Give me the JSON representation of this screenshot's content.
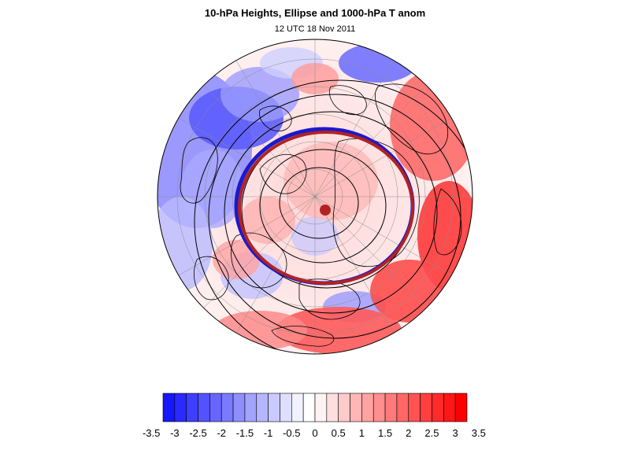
{
  "title": "10-hPa Heights, Ellipse and 1000-hPa T anom",
  "subtitle": "12 UTC 18 Nov 2011",
  "colorbar": {
    "labels": [
      "-3.5",
      "-3",
      "-2.5",
      "-2",
      "-1.5",
      "-1",
      "-0.5",
      "0",
      "0.5",
      "1",
      "1.5",
      "2",
      "2.5",
      "3",
      "3.5"
    ],
    "colors": [
      "#1616ff",
      "#2a2aff",
      "#3e3eff",
      "#5252ff",
      "#6666ff",
      "#7a7aff",
      "#8e8eff",
      "#a2a2ff",
      "#b6b6ff",
      "#cacaff",
      "#dedeff",
      "#f2f2ff",
      "#ffffff",
      "#fff2f2",
      "#ffdede",
      "#ffcaca",
      "#ffb6b6",
      "#ffa2a2",
      "#ff8e8e",
      "#ff7a7a",
      "#ff6666",
      "#ff5252",
      "#ff3e3e",
      "#ff2a2a",
      "#ff1616",
      "#ff0000"
    ]
  },
  "map": {
    "projection": "north-polar-orthographic",
    "ellipse_color": "#b22222",
    "ellipse_inner_color": "#1a1acc",
    "center_marker_color": "#b22222"
  }
}
